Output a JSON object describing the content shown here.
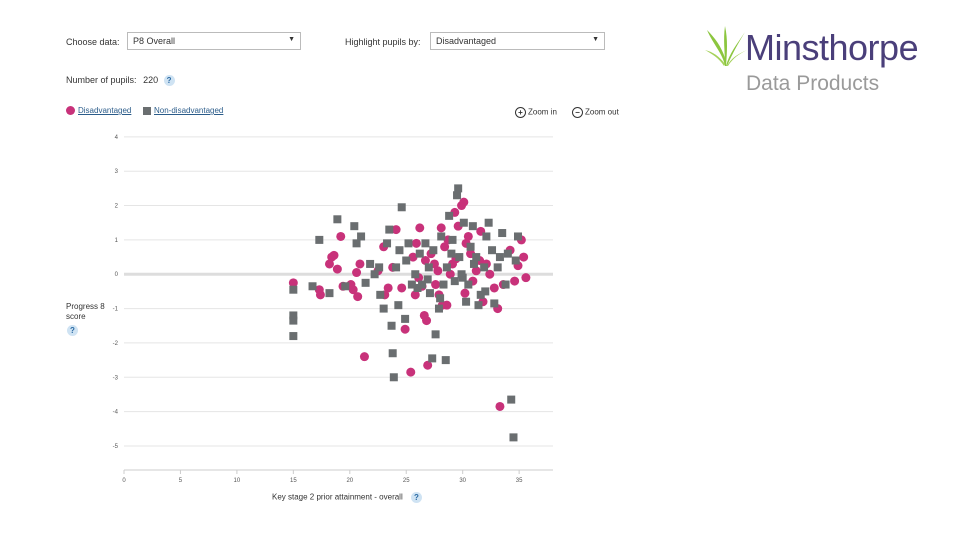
{
  "controls": {
    "choose_data_label": "Choose data:",
    "choose_data_value": "P8 Overall",
    "highlight_label": "Highlight pupils by:",
    "highlight_value": "Disadvantaged",
    "pupils_label": "Number of pupils:",
    "pupils_count": "220",
    "help_glyph": "?"
  },
  "legend": {
    "disadvantaged": "Disadvantaged",
    "non_disadvantaged": "Non-disadvantaged"
  },
  "zoom": {
    "zoom_in": "Zoom in",
    "zoom_out": "Zoom out"
  },
  "logo": {
    "title": "Minsthorpe",
    "subtitle": "Data Products",
    "colors": {
      "title": "#4a3f7a",
      "leaf": "#8cc63f",
      "subtitle": "#9a9a9a"
    }
  },
  "colors": {
    "disadvantaged": "#c8327a",
    "non_disadvantaged": "#6a6e70",
    "grid": "#e5e5e5",
    "zero_line": "#dddddd"
  },
  "chart_data": {
    "type": "scatter",
    "ylabel": "Progress 8 score",
    "xlabel": "Key stage 2 prior attainment - overall",
    "xlim": [
      0,
      38
    ],
    "ylim": [
      -5.7,
      4.2
    ],
    "x_ticks": [
      "0",
      "5",
      "10",
      "15",
      "20",
      "25",
      "30",
      "35"
    ],
    "y_ticks": [
      "4",
      "3",
      "2",
      "1",
      "0",
      "-1",
      "-2",
      "-3",
      "-4",
      "-5"
    ],
    "grid": true,
    "series": [
      {
        "name": "Disadvantaged",
        "marker": "circle",
        "points": [
          [
            15,
            -0.25
          ],
          [
            17.3,
            -0.45
          ],
          [
            17.4,
            -0.6
          ],
          [
            18.2,
            0.3
          ],
          [
            18.4,
            0.5
          ],
          [
            18.6,
            0.55
          ],
          [
            18.9,
            0.15
          ],
          [
            19.2,
            1.1
          ],
          [
            19.4,
            -0.35
          ],
          [
            20.1,
            -0.3
          ],
          [
            20.3,
            -0.45
          ],
          [
            20.6,
            0.05
          ],
          [
            20.7,
            -0.65
          ],
          [
            20.9,
            0.3
          ],
          [
            21.3,
            -2.4
          ],
          [
            22.5,
            0.1
          ],
          [
            23,
            0.8
          ],
          [
            23.1,
            -0.6
          ],
          [
            23.4,
            -0.4
          ],
          [
            23.8,
            0.2
          ],
          [
            24.1,
            1.3
          ],
          [
            24.6,
            -0.4
          ],
          [
            24.9,
            -1.6
          ],
          [
            25.4,
            -2.85
          ],
          [
            25.8,
            -0.6
          ],
          [
            25.9,
            0.9
          ],
          [
            26.2,
            1.35
          ],
          [
            26.4,
            -0.35
          ],
          [
            26.6,
            -1.2
          ],
          [
            26.7,
            0.4
          ],
          [
            26.8,
            -1.35
          ],
          [
            26.9,
            -2.65
          ],
          [
            27.2,
            0.6
          ],
          [
            27.5,
            0.3
          ],
          [
            27.8,
            0.1
          ],
          [
            27.9,
            -0.6
          ],
          [
            28.1,
            1.35
          ],
          [
            28.2,
            -0.9
          ],
          [
            28.4,
            0.8
          ],
          [
            28.6,
            -0.9
          ],
          [
            28.7,
            1.0
          ],
          [
            28.9,
            0.0
          ],
          [
            29.1,
            0.3
          ],
          [
            29.3,
            1.8
          ],
          [
            29.6,
            1.4
          ],
          [
            29.9,
            2.0
          ],
          [
            30.1,
            2.1
          ],
          [
            30.3,
            0.9
          ],
          [
            30.5,
            1.1
          ],
          [
            30.7,
            0.6
          ],
          [
            30.9,
            -0.2
          ],
          [
            31.2,
            0.1
          ],
          [
            31.5,
            0.4
          ],
          [
            31.8,
            -0.8
          ],
          [
            32.1,
            0.3
          ],
          [
            32.4,
            0.0
          ],
          [
            32.8,
            -0.4
          ],
          [
            33.1,
            -1.0
          ],
          [
            33.3,
            -3.85
          ],
          [
            33.6,
            -0.3
          ],
          [
            34.2,
            0.7
          ],
          [
            34.6,
            -0.2
          ],
          [
            34.9,
            0.25
          ],
          [
            35.2,
            1.0
          ],
          [
            35.4,
            0.5
          ],
          [
            35.6,
            -0.1
          ],
          [
            25.6,
            0.5
          ],
          [
            26.1,
            -0.1
          ],
          [
            27.6,
            -0.3
          ],
          [
            29.4,
            0.45
          ],
          [
            30.2,
            -0.55
          ],
          [
            31.6,
            1.25
          ]
        ]
      },
      {
        "name": "Non-disadvantaged",
        "marker": "square",
        "points": [
          [
            15,
            -0.45
          ],
          [
            15,
            -1.2
          ],
          [
            15,
            -1.35
          ],
          [
            15,
            -1.8
          ],
          [
            16.7,
            -0.35
          ],
          [
            17.3,
            1.0
          ],
          [
            18.2,
            -0.55
          ],
          [
            18.9,
            1.6
          ],
          [
            19.6,
            -0.35
          ],
          [
            20.4,
            1.4
          ],
          [
            20.6,
            0.9
          ],
          [
            21.0,
            1.1
          ],
          [
            21.4,
            -0.25
          ],
          [
            21.8,
            0.3
          ],
          [
            22.2,
            0.0
          ],
          [
            22.6,
            0.2
          ],
          [
            22.7,
            -0.6
          ],
          [
            23.0,
            -1.0
          ],
          [
            23.3,
            0.9
          ],
          [
            23.5,
            1.3
          ],
          [
            23.7,
            -1.5
          ],
          [
            23.8,
            -2.3
          ],
          [
            23.9,
            -3.0
          ],
          [
            24.1,
            0.2
          ],
          [
            24.4,
            0.7
          ],
          [
            24.6,
            1.95
          ],
          [
            24.9,
            -1.3
          ],
          [
            25.2,
            0.9
          ],
          [
            25.5,
            -0.3
          ],
          [
            25.8,
            0.0
          ],
          [
            26.0,
            -0.4
          ],
          [
            26.4,
            -0.3
          ],
          [
            26.7,
            0.9
          ],
          [
            26.9,
            -0.15
          ],
          [
            27.1,
            -0.55
          ],
          [
            27.3,
            -2.45
          ],
          [
            27.4,
            0.7
          ],
          [
            27.6,
            -1.75
          ],
          [
            27.9,
            -1.0
          ],
          [
            28.1,
            1.1
          ],
          [
            28.3,
            -0.3
          ],
          [
            28.5,
            -2.5
          ],
          [
            28.6,
            0.2
          ],
          [
            28.8,
            1.7
          ],
          [
            29.1,
            1.0
          ],
          [
            29.3,
            -0.2
          ],
          [
            29.5,
            2.3
          ],
          [
            29.6,
            2.5
          ],
          [
            29.7,
            0.5
          ],
          [
            29.9,
            0.0
          ],
          [
            30.1,
            1.5
          ],
          [
            30.3,
            -0.8
          ],
          [
            30.5,
            -0.3
          ],
          [
            30.7,
            0.8
          ],
          [
            30.9,
            1.4
          ],
          [
            31.2,
            0.5
          ],
          [
            31.4,
            -0.9
          ],
          [
            31.6,
            -0.6
          ],
          [
            31.9,
            0.2
          ],
          [
            32.1,
            1.1
          ],
          [
            32.3,
            1.5
          ],
          [
            32.6,
            0.7
          ],
          [
            32.8,
            -0.85
          ],
          [
            33.1,
            0.2
          ],
          [
            33.3,
            0.5
          ],
          [
            33.5,
            1.2
          ],
          [
            33.8,
            -0.3
          ],
          [
            34.0,
            0.6
          ],
          [
            34.3,
            -3.65
          ],
          [
            34.5,
            -4.75
          ],
          [
            34.7,
            0.4
          ],
          [
            34.9,
            1.1
          ],
          [
            26.2,
            0.6
          ],
          [
            27.0,
            0.2
          ],
          [
            28.0,
            -0.7
          ],
          [
            29.0,
            0.6
          ],
          [
            30.0,
            -0.1
          ],
          [
            31.0,
            0.3
          ],
          [
            32.0,
            -0.5
          ],
          [
            25.0,
            0.4
          ],
          [
            24.3,
            -0.9
          ]
        ]
      }
    ]
  }
}
